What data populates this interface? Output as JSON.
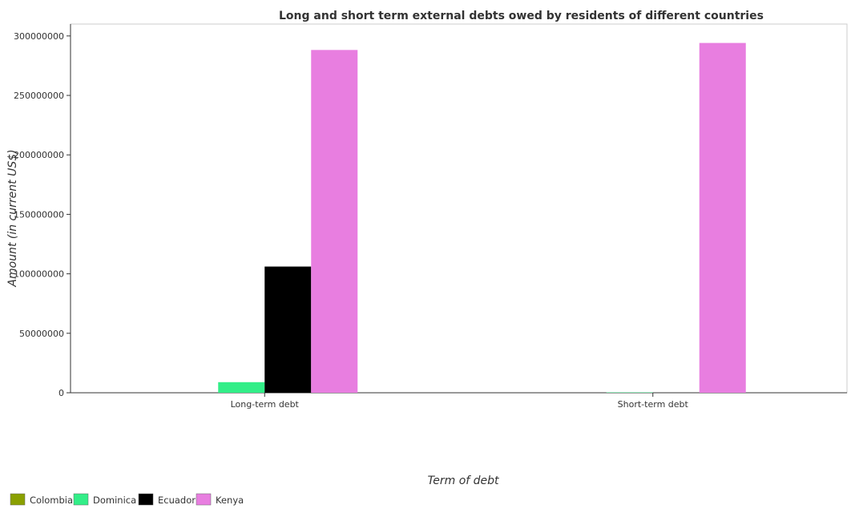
{
  "chart_data": {
    "type": "bar",
    "title": "Long and short term external debts owed by residents of different countries",
    "xlabel": "Term of debt",
    "ylabel": "Amount (in current US$)",
    "categories": [
      "Long-term debt",
      "Short-term debt"
    ],
    "ylim": [
      0,
      310000000
    ],
    "yticks": [
      0,
      50000000,
      100000000,
      150000000,
      200000000,
      250000000,
      300000000
    ],
    "ytick_labels": [
      "0",
      "50000000",
      "100000000",
      "150000000",
      "200000000",
      "250000000",
      "300000000"
    ],
    "series": [
      {
        "name": "Colombia",
        "color": "#8aa000",
        "values": [
          0,
          0
        ]
      },
      {
        "name": "Dominica",
        "color": "#33ee88",
        "values": [
          8900000,
          300000
        ]
      },
      {
        "name": "Ecuador",
        "color": "#000000",
        "values": [
          106100000,
          0
        ]
      },
      {
        "name": "Kenya",
        "color": "#e87ee0",
        "values": [
          288200000,
          294100000
        ]
      }
    ],
    "grid": false,
    "legend_position": "bottom-left"
  }
}
